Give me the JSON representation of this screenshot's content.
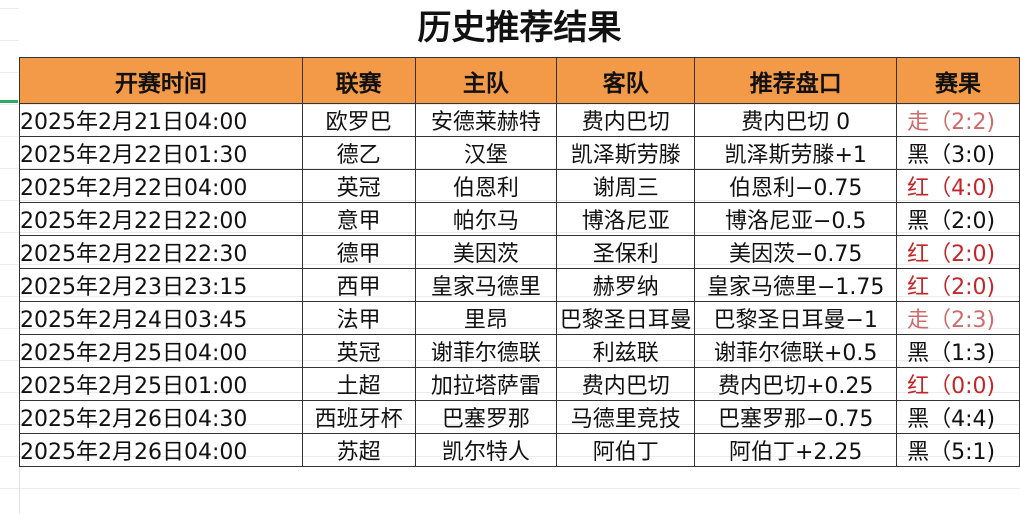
{
  "title": "历史推荐结果",
  "colors": {
    "header_bg": "#f39a48",
    "zou": "#d06a6a",
    "hong": "#c3262a",
    "hei": "#111111"
  },
  "columns": [
    "开赛时间",
    "联赛",
    "主队",
    "客队",
    "推荐盘口",
    "赛果"
  ],
  "rows": [
    {
      "time": "2025年2月21日04:00",
      "league": "欧罗巴",
      "home": "安德莱赫特",
      "away": "费内巴切",
      "pick": "费内巴切 0",
      "result": "走（2:2)",
      "status": "zou"
    },
    {
      "time": "2025年2月22日01:30",
      "league": "德乙",
      "home": "汉堡",
      "away": "凯泽斯劳滕",
      "pick": "凯泽斯劳滕+1",
      "result": "黑（3:0)",
      "status": "hei"
    },
    {
      "time": "2025年2月22日04:00",
      "league": "英冠",
      "home": "伯恩利",
      "away": "谢周三",
      "pick": "伯恩利−0.75",
      "result": "红（4:0)",
      "status": "hong"
    },
    {
      "time": "2025年2月22日22:00",
      "league": "意甲",
      "home": "帕尔马",
      "away": "博洛尼亚",
      "pick": "博洛尼亚−0.5",
      "result": "黑（2:0)",
      "status": "hei"
    },
    {
      "time": "2025年2月22日22:30",
      "league": "德甲",
      "home": "美因茨",
      "away": "圣保利",
      "pick": "美因茨−0.75",
      "result": "红（2:0)",
      "status": "hong"
    },
    {
      "time": "2025年2月23日23:15",
      "league": "西甲",
      "home": "皇家马德里",
      "away": "赫罗纳",
      "pick": "皇家马德里−1.75",
      "result": "红（2:0)",
      "status": "hong"
    },
    {
      "time": "2025年2月24日03:45",
      "league": "法甲",
      "home": "里昂",
      "away": "巴黎圣日耳曼",
      "pick": "巴黎圣日耳曼−1",
      "result": "走（2:3)",
      "status": "zou"
    },
    {
      "time": "2025年2月25日04:00",
      "league": "英冠",
      "home": "谢菲尔德联",
      "away": "利兹联",
      "pick": "谢菲尔德联+0.5",
      "result": "黑（1:3)",
      "status": "hei"
    },
    {
      "time": "2025年2月25日01:00",
      "league": "土超",
      "home": "加拉塔萨雷",
      "away": "费内巴切",
      "pick": "费内巴切+0.25",
      "result": "红（0:0)",
      "status": "hong"
    },
    {
      "time": "2025年2月26日04:30",
      "league": "西班牙杯",
      "home": "巴塞罗那",
      "away": "马德里竞技",
      "pick": "巴塞罗那−0.75",
      "result": "黑（4:4)",
      "status": "hei"
    },
    {
      "time": "2025年2月26日04:00",
      "league": "苏超",
      "home": "凯尔特人",
      "away": "阿伯丁",
      "pick": "阿伯丁+2.25",
      "result": "黑（5:1)",
      "status": "hei"
    }
  ]
}
